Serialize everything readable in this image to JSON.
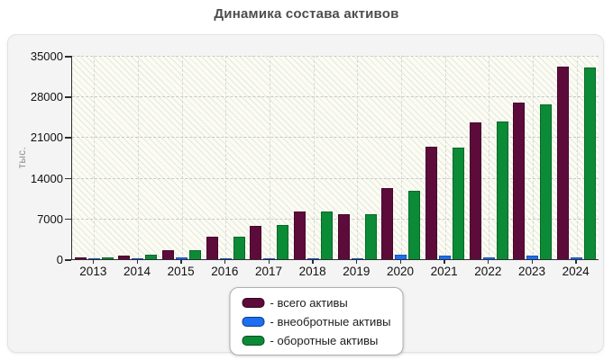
{
  "title": "Динамика состава активов",
  "chart_data": {
    "type": "bar",
    "title": "Динамика состава активов",
    "xlabel": "",
    "ylabel": "тыс.",
    "ylim": [
      0,
      35000
    ],
    "yticks": [
      0,
      7000,
      14000,
      21000,
      28000,
      35000
    ],
    "grid": true,
    "legend_position": "bottom",
    "categories": [
      "2013",
      "2014",
      "2015",
      "2016",
      "2017",
      "2018",
      "2019",
      "2020",
      "2021",
      "2022",
      "2023",
      "2024"
    ],
    "series": [
      {
        "key": "total",
        "name": "всего активы",
        "color": "#5d0b3b",
        "values": [
          250,
          620,
          1500,
          3900,
          5800,
          8150,
          7700,
          12200,
          19400,
          23600,
          26900,
          33200
        ]
      },
      {
        "key": "noncurrent",
        "name": "внеобротные активы",
        "color": "#1c6ef2",
        "values": [
          150,
          180,
          250,
          220,
          200,
          220,
          220,
          850,
          650,
          350,
          550,
          350
        ]
      },
      {
        "key": "current",
        "name": "оборотные активы",
        "color": "#0b8b36",
        "values": [
          240,
          700,
          1500,
          3900,
          5850,
          8150,
          7750,
          11700,
          19150,
          23650,
          26700,
          33050
        ]
      }
    ]
  },
  "legend": {
    "items": [
      {
        "label": "- всего активы",
        "color": "#5d0b3b"
      },
      {
        "label": "- внеобротные активы",
        "color": "#1c6ef2"
      },
      {
        "label": "- оборотные активы",
        "color": "#0b8b36"
      }
    ]
  }
}
